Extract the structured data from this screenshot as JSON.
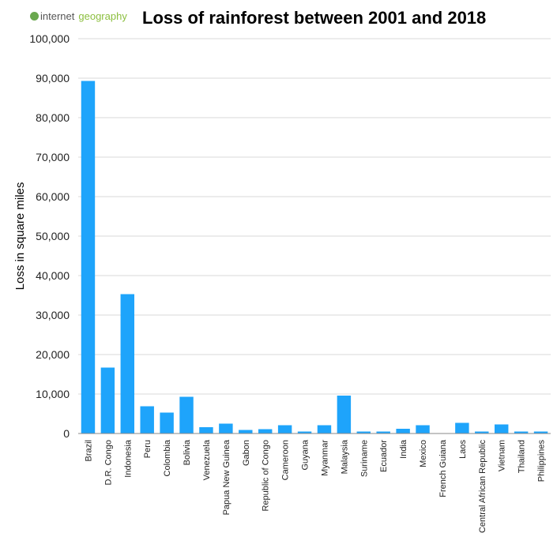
{
  "logo": {
    "part1": "internet",
    "part2": "geography"
  },
  "chart_data": {
    "type": "bar",
    "title": "Loss of rainforest between 2001 and 2018",
    "xlabel": "",
    "ylabel": "Loss in square miles",
    "ylim": [
      0,
      100000
    ],
    "yticks": [
      "0",
      "10,000",
      "20,000",
      "30,000",
      "40,000",
      "50,000",
      "60,000",
      "70,000",
      "80,000",
      "90,000",
      "100,000"
    ],
    "grid": true,
    "bar_color": "#1ea4fb",
    "categories": [
      "Brazil",
      "D.R. Congo",
      "Indonesia",
      "Peru",
      "Colombia",
      "Bolivia",
      "Venezuela",
      "Papua New Guinea",
      "Gabon",
      "Republic of Congo",
      "Cameroon",
      "Guyana",
      "Myanmar",
      "Malaysia",
      "Suriname",
      "Ecuador",
      "India",
      "Mexico",
      "French Guiana",
      "Laos",
      "Central African Republic",
      "Vietnam",
      "Thailand",
      "Philippines"
    ],
    "values": [
      89300,
      16700,
      35300,
      6900,
      5300,
      9300,
      1600,
      2500,
      900,
      1100,
      2100,
      500,
      2100,
      9600,
      500,
      500,
      1200,
      2100,
      100,
      2700,
      500,
      2300,
      500,
      500
    ]
  }
}
